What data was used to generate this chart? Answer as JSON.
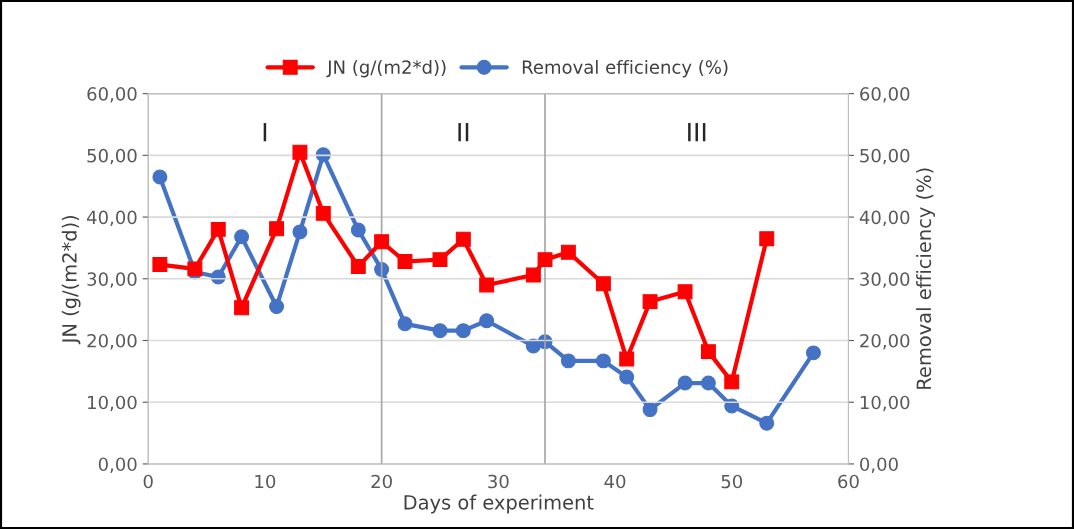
{
  "chart_data": {
    "type": "line",
    "xlabel": "Days of experiment",
    "ylabel": "JN (g/(m2*d))",
    "y2label": "Removal efficiency (%)",
    "x": [
      1,
      4,
      6,
      8,
      11,
      13,
      15,
      18,
      20,
      22,
      25,
      27,
      29,
      33,
      34,
      36,
      39,
      41,
      43,
      46,
      48,
      50,
      53
    ],
    "series": [
      {
        "name": "JN (g/(m2*d))",
        "color": "#ff0000",
        "marker": "square",
        "values": [
          32.3,
          31.6,
          38.0,
          25.3,
          38.1,
          50.5,
          40.6,
          32.0,
          36.0,
          32.8,
          33.1,
          36.4,
          29.0,
          30.6,
          33.1,
          34.3,
          29.2,
          17.0,
          26.3,
          27.9,
          18.2,
          13.3,
          36.5
        ]
      },
      {
        "name": "Removal efficiency (%)",
        "color": "#4472c4",
        "marker": "circle",
        "axis": "y2",
        "x": [
          1,
          4,
          6,
          8,
          11,
          13,
          15,
          18,
          20,
          22,
          25,
          27,
          29,
          33,
          34,
          36,
          39,
          41,
          43,
          46,
          48,
          50,
          53,
          57
        ],
        "values": [
          46.5,
          31.1,
          30.3,
          36.8,
          25.5,
          37.6,
          50.1,
          37.9,
          31.5,
          22.7,
          21.6,
          21.6,
          23.2,
          19.1,
          19.8,
          16.7,
          16.7,
          14.1,
          8.8,
          13.1,
          13.1,
          9.4,
          6.6,
          18.0
        ]
      }
    ],
    "xlim": [
      0,
      60
    ],
    "xticks": [
      0,
      10,
      20,
      30,
      40,
      50,
      60
    ],
    "ylim": [
      0,
      60
    ],
    "yticks": [
      {
        "value": 0,
        "label": "0,00"
      },
      {
        "value": 10,
        "label": "10,00"
      },
      {
        "value": 20,
        "label": "20,00"
      },
      {
        "value": 30,
        "label": "30,00"
      },
      {
        "value": 40,
        "label": "40,00"
      },
      {
        "value": 50,
        "label": "50,00"
      },
      {
        "value": 60,
        "label": "60,00"
      }
    ],
    "y2lim": [
      0,
      60
    ],
    "y2ticks": [
      {
        "value": 0,
        "label": "0,00"
      },
      {
        "value": 10,
        "label": "10,00"
      },
      {
        "value": 20,
        "label": "20,00"
      },
      {
        "value": 30,
        "label": "30,00"
      },
      {
        "value": 40,
        "label": "40,00"
      },
      {
        "value": 50,
        "label": "50,00"
      },
      {
        "value": 60,
        "label": "60,00"
      }
    ],
    "ref_lines": [
      {
        "axis": "x",
        "value": 20,
        "color": "#a6a6a6"
      },
      {
        "axis": "x",
        "value": 34,
        "color": "#a6a6a6"
      }
    ],
    "annotations": [
      "I",
      "II",
      "III"
    ],
    "grid": "y",
    "legend": "top",
    "line_style": "solid"
  }
}
